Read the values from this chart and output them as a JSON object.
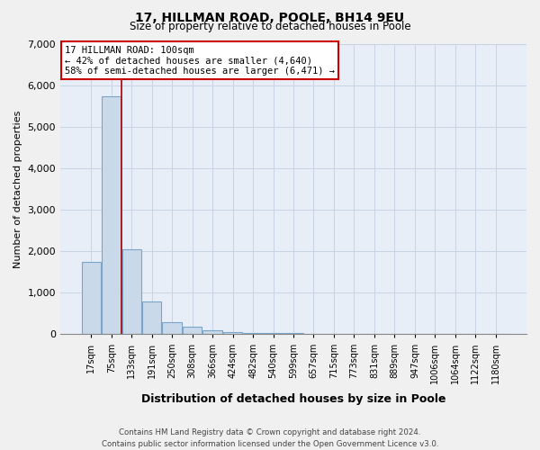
{
  "title1": "17, HILLMAN ROAD, POOLE, BH14 9EU",
  "title2": "Size of property relative to detached houses in Poole",
  "xlabel": "Distribution of detached houses by size in Poole",
  "ylabel": "Number of detached properties",
  "categories": [
    "17sqm",
    "75sqm",
    "133sqm",
    "191sqm",
    "250sqm",
    "308sqm",
    "366sqm",
    "424sqm",
    "482sqm",
    "540sqm",
    "599sqm",
    "657sqm",
    "715sqm",
    "773sqm",
    "831sqm",
    "889sqm",
    "947sqm",
    "1006sqm",
    "1064sqm",
    "1122sqm",
    "1180sqm"
  ],
  "values": [
    1750,
    5750,
    2050,
    800,
    280,
    175,
    100,
    60,
    40,
    25,
    20,
    15,
    10,
    5,
    3,
    2,
    1,
    1,
    0,
    0,
    0
  ],
  "bar_color": "#c9d9ea",
  "bar_edge_color": "#7aa4c8",
  "red_line_x": 1.5,
  "property_label": "17 HILLMAN ROAD: 100sqm",
  "annotation_line1": "← 42% of detached houses are smaller (4,640)",
  "annotation_line2": "58% of semi-detached houses are larger (6,471) →",
  "annotation_box_color": "#ffffff",
  "annotation_border_color": "#cc0000",
  "ylim": [
    0,
    7000
  ],
  "yticks": [
    0,
    1000,
    2000,
    3000,
    4000,
    5000,
    6000,
    7000
  ],
  "grid_color": "#c8d4e4",
  "background_color": "#e8eef8",
  "footer1": "Contains HM Land Registry data © Crown copyright and database right 2024.",
  "footer2": "Contains public sector information licensed under the Open Government Licence v3.0."
}
